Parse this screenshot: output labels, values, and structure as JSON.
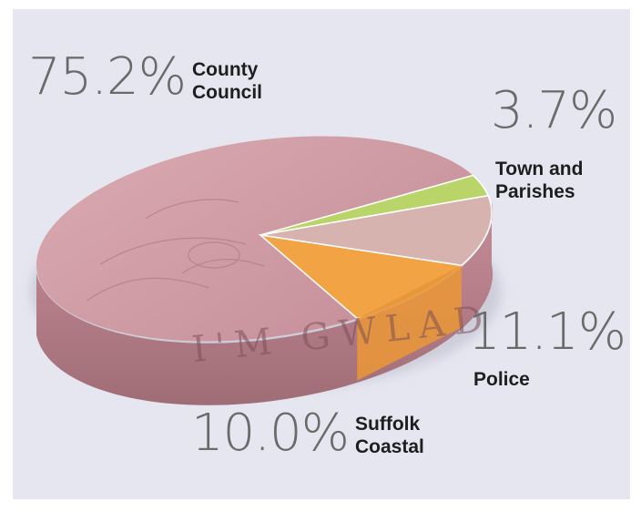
{
  "chart_data": {
    "type": "pie",
    "slices": [
      {
        "name": "County Council",
        "pct_label": "75.2%",
        "label_line1": "County",
        "label_line2": "Council",
        "value": 75.2,
        "color": "#cf9aa2"
      },
      {
        "name": "Town and Parishes",
        "pct_label": "3.7%",
        "label_line1": "Town and",
        "label_line2": "Parishes",
        "value": 3.7,
        "color": "#b9d56a"
      },
      {
        "name": "Police",
        "pct_label": "11.1%",
        "label_line1": "Police",
        "label_line2": "",
        "value": 11.1,
        "color": "#d7b3b0"
      },
      {
        "name": "Suffolk Coastal",
        "pct_label": "10.0%",
        "label_line1": "Suffolk",
        "label_line2": "Coastal",
        "value": 10.0,
        "color": "#f2a445"
      }
    ],
    "coin_text": "I'M  GWLAD"
  }
}
